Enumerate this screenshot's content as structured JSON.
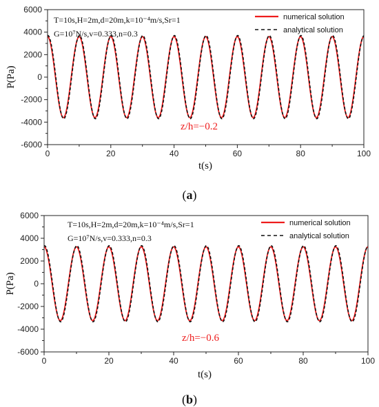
{
  "colors": {
    "numerical": "#ee1c1c",
    "analytical": "#111111",
    "zlabel": "#ee1c1c",
    "axis": "#222222"
  },
  "chart_data": [
    {
      "type": "line",
      "panel_label": "a",
      "xlabel": "t(s)",
      "ylabel": "P(Pa)",
      "xlim": [
        0,
        100
      ],
      "ylim": [
        -6000,
        6000
      ],
      "xticks": [
        0,
        20,
        40,
        60,
        80,
        100
      ],
      "yticks": [
        -6000,
        -4000,
        -2000,
        0,
        2000,
        4000,
        6000
      ],
      "grid": false,
      "legend_position": "top-right",
      "params_line1": "T=10s,H=2m,d=20m,k=10⁻⁴m/s,Sr=1",
      "params_line2": "G=10⁷N/s,v=0.333,n=0.3",
      "annotation": "z/h=−0.2",
      "series": [
        {
          "name": "numerical solution",
          "style": "solid",
          "amplitude": 3600,
          "period": 10,
          "phase_deg": 0,
          "x": [
            0,
            5,
            10,
            15,
            20,
            25,
            30,
            35,
            40,
            45,
            50,
            55,
            60,
            65,
            70,
            75,
            80,
            85,
            90,
            95,
            100
          ],
          "y": [
            3600,
            -3600,
            3600,
            -3600,
            3600,
            -3600,
            3600,
            -3600,
            3600,
            -3600,
            3600,
            -3600,
            3600,
            -3600,
            3600,
            -3600,
            3600,
            -3600,
            3600,
            -3600,
            3600
          ]
        },
        {
          "name": "analytical solution",
          "style": "dashed",
          "amplitude": 3700,
          "period": 10,
          "phase_deg": 4,
          "x": [
            0,
            5,
            10,
            15,
            20,
            25,
            30,
            35,
            40,
            45,
            50,
            55,
            60,
            65,
            70,
            75,
            80,
            85,
            90,
            95,
            100
          ],
          "y": [
            3691,
            -3691,
            3691,
            -3691,
            3691,
            -3691,
            3691,
            -3691,
            3691,
            -3691,
            3691,
            -3691,
            3691,
            -3691,
            3691,
            -3691,
            3691,
            -3691,
            3691,
            -3691,
            3691
          ]
        }
      ]
    },
    {
      "type": "line",
      "panel_label": "b",
      "xlabel": "t(s)",
      "ylabel": "P(Pa)",
      "xlim": [
        0,
        100
      ],
      "ylim": [
        -6000,
        6000
      ],
      "xticks": [
        0,
        20,
        40,
        60,
        80,
        100
      ],
      "yticks": [
        -6000,
        -4000,
        -2000,
        0,
        2000,
        4000,
        6000
      ],
      "grid": false,
      "legend_position": "top-right",
      "params_line1": "T=10s,H=2m,d=20m,k=10⁻⁴m/s,Sr=1",
      "params_line2": "G=10⁷N/s,v=0.333,n=0.3",
      "annotation": "z/h=−0.6",
      "series": [
        {
          "name": "numerical solution",
          "style": "solid",
          "amplitude": 3250,
          "period": 10,
          "phase_deg": 0,
          "x": [
            0,
            5,
            10,
            15,
            20,
            25,
            30,
            35,
            40,
            45,
            50,
            55,
            60,
            65,
            70,
            75,
            80,
            85,
            90,
            95,
            100
          ],
          "y": [
            3250,
            -3250,
            3250,
            -3250,
            3250,
            -3250,
            3250,
            -3250,
            3250,
            -3250,
            3250,
            -3250,
            3250,
            -3250,
            3250,
            -3250,
            3250,
            -3250,
            3250,
            -3250,
            3250
          ]
        },
        {
          "name": "analytical solution",
          "style": "dashed",
          "amplitude": 3350,
          "period": 10,
          "phase_deg": 4,
          "x": [
            0,
            5,
            10,
            15,
            20,
            25,
            30,
            35,
            40,
            45,
            50,
            55,
            60,
            65,
            70,
            75,
            80,
            85,
            90,
            95,
            100
          ],
          "y": [
            3342,
            -3342,
            3342,
            -3342,
            3342,
            -3342,
            3342,
            -3342,
            3342,
            -3342,
            3342,
            -3342,
            3342,
            -3342,
            3342,
            -3342,
            3342,
            -3342,
            3342,
            -3342,
            3342
          ]
        }
      ]
    }
  ]
}
